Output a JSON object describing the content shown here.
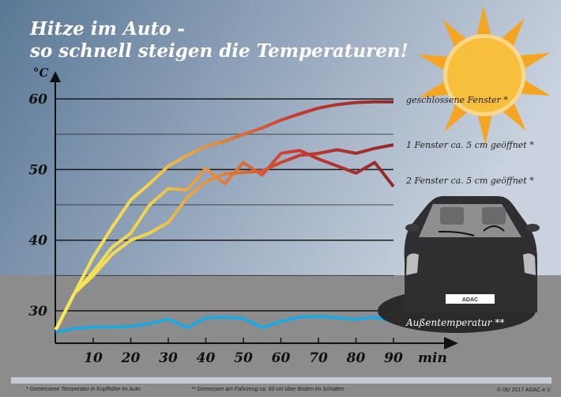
{
  "title_line1": "Hitze im Auto -",
  "title_line2": "so schnell steigen die Temperaturen!",
  "footnote1": "* Gemessene Temperatur  in Kopfhöhe  im Auto",
  "footnote2": "** Gemessen am Fahrzeug ca. 60 cm über Boden im Schatten",
  "copyright": "© 06/ 2017 ADAC e.V.",
  "plate": "ADAC",
  "colors": {
    "start": "#f7e85a",
    "mid": "#e0843a",
    "red": "#c93a32",
    "dark": "#8e2a2c",
    "outside": "#1fa8e0",
    "sun": "#f8bf3c",
    "rays": "#f4a623",
    "car": "#2f2f31",
    "ground": "#8c8c8c"
  },
  "chart_data": {
    "type": "line",
    "xlabel": "min",
    "ylabel": "°C",
    "xlim": [
      0,
      95
    ],
    "ylim": [
      25.5,
      62
    ],
    "xticks": [
      10,
      20,
      30,
      40,
      50,
      60,
      70,
      80,
      90
    ],
    "yticks": [
      30,
      40,
      50,
      60
    ],
    "grid": true,
    "x": [
      0,
      5,
      10,
      15,
      20,
      25,
      30,
      35,
      40,
      45,
      50,
      55,
      60,
      65,
      70,
      75,
      80,
      85,
      90
    ],
    "series": [
      {
        "name": "geschlossene Fenster *",
        "values": [
          27.3,
          32.5,
          37.6,
          41.8,
          45.7,
          48,
          50.5,
          52,
          53.3,
          54,
          55,
          55.9,
          57,
          57.9,
          58.7,
          59.2,
          59.5,
          59.6,
          59.6
        ]
      },
      {
        "name": "1 Fenster ca. 5 cm geöffnet *",
        "values": [
          27.3,
          32.5,
          35,
          38,
          40,
          41,
          42.5,
          46,
          48.3,
          49.4,
          49.6,
          49.8,
          51,
          52,
          52.3,
          52.8,
          52.3,
          53,
          53.5
        ]
      },
      {
        "name": "2 Fenster ca. 5 cm geöffnet *",
        "values": [
          27.3,
          32.5,
          35.5,
          39,
          41,
          45,
          47.3,
          47.1,
          50.2,
          48,
          51,
          49.2,
          52.3,
          52.7,
          51.5,
          50.5,
          49.5,
          51,
          47.6
        ]
      },
      {
        "name": "Außentemperatur **",
        "values": [
          27,
          27.5,
          27.7,
          27.7,
          27.8,
          28.2,
          28.8,
          27.6,
          29,
          29.1,
          28.9,
          27.6,
          28.5,
          29.1,
          29.2,
          29,
          28.8,
          29.1,
          28.5
        ]
      }
    ]
  }
}
